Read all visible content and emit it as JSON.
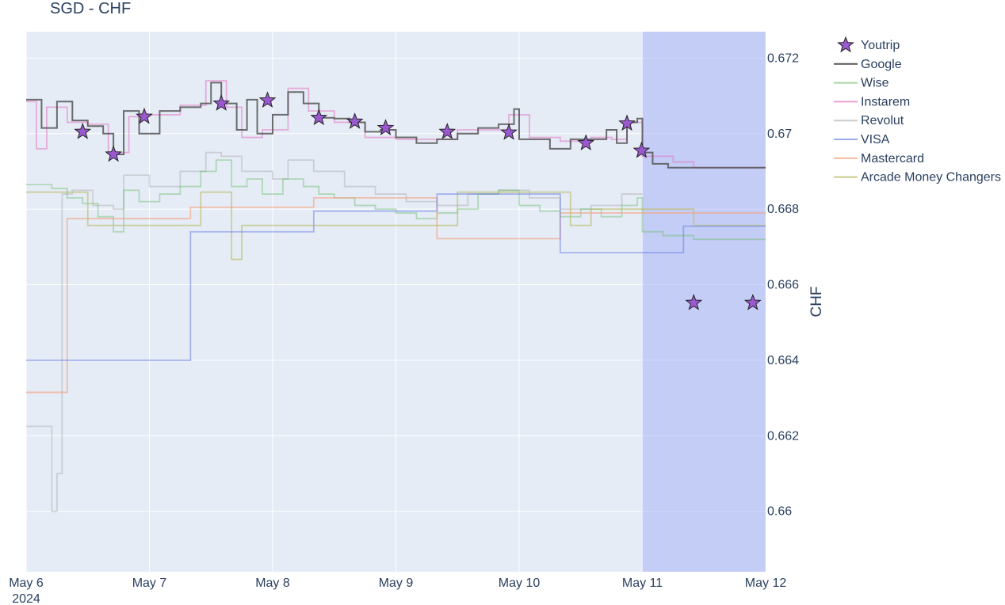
{
  "chart_data": {
    "type": "line",
    "title": "SGD - CHF",
    "ylabel": "CHF",
    "xlabel": "",
    "x_range": [
      "2024-05-06",
      "2024-05-12"
    ],
    "ylim": [
      0.6584,
      0.6727
    ],
    "x_ticks": [
      {
        "date": "2024-05-06",
        "label": "May 6",
        "sublabel": "2024"
      },
      {
        "date": "2024-05-07",
        "label": "May 7"
      },
      {
        "date": "2024-05-08",
        "label": "May 8"
      },
      {
        "date": "2024-05-09",
        "label": "May 9"
      },
      {
        "date": "2024-05-10",
        "label": "May 10"
      },
      {
        "date": "2024-05-11",
        "label": "May 11"
      },
      {
        "date": "2024-05-12",
        "label": "May 12"
      }
    ],
    "y_ticks": [
      0.66,
      0.662,
      0.664,
      0.666,
      0.668,
      0.67,
      0.672
    ],
    "y_tick_labels": [
      "0.66",
      "0.662",
      "0.664",
      "0.666",
      "0.668",
      "0.67",
      "0.672"
    ],
    "shaded_region": {
      "x0": "2024-05-11",
      "x1": "2024-05-12",
      "color": "#aab4f5"
    },
    "plot_bgcolor": "#e5ecf6",
    "grid": true,
    "legend_position": "right",
    "series": [
      {
        "name": "Youtrip",
        "mode": "markers",
        "marker": "star",
        "color": "#9b59d0",
        "points": [
          [
            "2024-05-06 11:00",
            0.67005
          ],
          [
            "2024-05-06 17:00",
            0.66945
          ],
          [
            "2024-05-06 23:00",
            0.67045
          ],
          [
            "2024-05-07 14:00",
            0.6708
          ],
          [
            "2024-05-07 23:00",
            0.67088
          ],
          [
            "2024-05-08 09:00",
            0.67042
          ],
          [
            "2024-05-08 16:00",
            0.67032
          ],
          [
            "2024-05-08 22:00",
            0.67015
          ],
          [
            "2024-05-09 10:00",
            0.67005
          ],
          [
            "2024-05-09 22:00",
            0.67003
          ],
          [
            "2024-05-10 13:00",
            0.66975
          ],
          [
            "2024-05-10 21:00",
            0.67027
          ],
          [
            "2024-05-10 23:50",
            0.66955
          ],
          [
            "2024-05-11 10:00",
            0.66552
          ],
          [
            "2024-05-11 21:30",
            0.66552
          ]
        ]
      },
      {
        "name": "Google",
        "mode": "line",
        "color": "#555555",
        "opacity": 0.85,
        "points": [
          [
            "2024-05-06 00:00",
            0.6709
          ],
          [
            "2024-05-06 03:00",
            0.67015
          ],
          [
            "2024-05-06 06:00",
            0.67085
          ],
          [
            "2024-05-06 09:00",
            0.67035
          ],
          [
            "2024-05-06 12:00",
            0.6702
          ],
          [
            "2024-05-06 15:00",
            0.67
          ],
          [
            "2024-05-06 17:00",
            0.66945
          ],
          [
            "2024-05-06 19:00",
            0.6706
          ],
          [
            "2024-05-06 22:00",
            0.67
          ],
          [
            "2024-05-07 02:00",
            0.6706
          ],
          [
            "2024-05-07 06:00",
            0.6707
          ],
          [
            "2024-05-07 10:00",
            0.6708
          ],
          [
            "2024-05-07 12:00",
            0.67135
          ],
          [
            "2024-05-07 14:00",
            0.6708
          ],
          [
            "2024-05-07 17:00",
            0.6701
          ],
          [
            "2024-05-07 19:00",
            0.6709
          ],
          [
            "2024-05-07 21:00",
            0.67
          ],
          [
            "2024-05-08 00:00",
            0.6705
          ],
          [
            "2024-05-08 03:00",
            0.6711
          ],
          [
            "2024-05-08 06:00",
            0.6708
          ],
          [
            "2024-05-08 09:00",
            0.67042
          ],
          [
            "2024-05-08 12:00",
            0.6704
          ],
          [
            "2024-05-08 15:00",
            0.6703
          ],
          [
            "2024-05-08 18:00",
            0.67005
          ],
          [
            "2024-05-08 21:00",
            0.6701
          ],
          [
            "2024-05-09 00:00",
            0.6699
          ],
          [
            "2024-05-09 04:00",
            0.66975
          ],
          [
            "2024-05-09 08:00",
            0.66985
          ],
          [
            "2024-05-09 12:00",
            0.67
          ],
          [
            "2024-05-09 16:00",
            0.67015
          ],
          [
            "2024-05-09 20:00",
            0.67025
          ],
          [
            "2024-05-09 23:00",
            0.67065
          ],
          [
            "2024-05-10 00:00",
            0.66985
          ],
          [
            "2024-05-10 04:00",
            0.66985
          ],
          [
            "2024-05-10 06:00",
            0.6696
          ],
          [
            "2024-05-10 10:00",
            0.66985
          ],
          [
            "2024-05-10 14:00",
            0.66985
          ],
          [
            "2024-05-10 17:00",
            0.6701
          ],
          [
            "2024-05-10 19:00",
            0.66975
          ],
          [
            "2024-05-10 21:00",
            0.6703
          ],
          [
            "2024-05-10 23:00",
            0.6704
          ],
          [
            "2024-05-11 00:00",
            0.6695
          ],
          [
            "2024-05-11 02:00",
            0.6692
          ],
          [
            "2024-05-11 05:00",
            0.6691
          ],
          [
            "2024-05-11 08:00",
            0.6691
          ],
          [
            "2024-05-12 00:00",
            0.6691
          ]
        ]
      },
      {
        "name": "Wise",
        "mode": "line",
        "color": "#5cb85c",
        "opacity": 0.4,
        "points": [
          [
            "2024-05-06 00:00",
            0.66865
          ],
          [
            "2024-05-06 05:00",
            0.66855
          ],
          [
            "2024-05-06 08:00",
            0.6683
          ],
          [
            "2024-05-06 11:00",
            0.66815
          ],
          [
            "2024-05-06 14:00",
            0.6678
          ],
          [
            "2024-05-06 17:00",
            0.6674
          ],
          [
            "2024-05-06 19:00",
            0.6685
          ],
          [
            "2024-05-06 22:00",
            0.6682
          ],
          [
            "2024-05-07 02:00",
            0.6684
          ],
          [
            "2024-05-07 06:00",
            0.6686
          ],
          [
            "2024-05-07 10:00",
            0.669
          ],
          [
            "2024-05-07 13:00",
            0.6693
          ],
          [
            "2024-05-07 16:00",
            0.6686
          ],
          [
            "2024-05-07 19:00",
            0.6688
          ],
          [
            "2024-05-07 22:00",
            0.6684
          ],
          [
            "2024-05-08 02:00",
            0.6688
          ],
          [
            "2024-05-08 06:00",
            0.6686
          ],
          [
            "2024-05-08 09:00",
            0.6684
          ],
          [
            "2024-05-08 12:00",
            0.6683
          ],
          [
            "2024-05-08 16:00",
            0.6681
          ],
          [
            "2024-05-08 20:00",
            0.668
          ],
          [
            "2024-05-09 00:00",
            0.6679
          ],
          [
            "2024-05-09 04:00",
            0.66775
          ],
          [
            "2024-05-09 08:00",
            0.6679
          ],
          [
            "2024-05-09 12:00",
            0.668
          ],
          [
            "2024-05-09 16:00",
            0.6684
          ],
          [
            "2024-05-09 20:00",
            0.6685
          ],
          [
            "2024-05-10 00:00",
            0.6681
          ],
          [
            "2024-05-10 04:00",
            0.66795
          ],
          [
            "2024-05-10 08:00",
            0.6678
          ],
          [
            "2024-05-10 12:00",
            0.668
          ],
          [
            "2024-05-10 16:00",
            0.6678
          ],
          [
            "2024-05-10 20:00",
            0.6681
          ],
          [
            "2024-05-10 23:00",
            0.6683
          ],
          [
            "2024-05-11 00:00",
            0.6674
          ],
          [
            "2024-05-11 04:00",
            0.6673
          ],
          [
            "2024-05-11 10:00",
            0.6672
          ],
          [
            "2024-05-12 00:00",
            0.6672
          ]
        ]
      },
      {
        "name": "Instarem",
        "mode": "line",
        "color": "#e377c2",
        "opacity": 0.55,
        "points": [
          [
            "2024-05-06 00:00",
            0.67085
          ],
          [
            "2024-05-06 02:00",
            0.6696
          ],
          [
            "2024-05-06 04:00",
            0.6707
          ],
          [
            "2024-05-06 08:00",
            0.6703
          ],
          [
            "2024-05-06 12:00",
            0.67025
          ],
          [
            "2024-05-06 16:00",
            0.6695
          ],
          [
            "2024-05-06 20:00",
            0.67045
          ],
          [
            "2024-05-07 00:00",
            0.6705
          ],
          [
            "2024-05-07 06:00",
            0.67075
          ],
          [
            "2024-05-07 11:00",
            0.6714
          ],
          [
            "2024-05-07 15:00",
            0.6707
          ],
          [
            "2024-05-07 18:00",
            0.6699
          ],
          [
            "2024-05-07 22:00",
            0.6701
          ],
          [
            "2024-05-08 03:00",
            0.6712
          ],
          [
            "2024-05-08 07:00",
            0.6706
          ],
          [
            "2024-05-08 12:00",
            0.6703
          ],
          [
            "2024-05-08 18:00",
            0.6699
          ],
          [
            "2024-05-09 00:00",
            0.66985
          ],
          [
            "2024-05-09 06:00",
            0.66985
          ],
          [
            "2024-05-09 12:00",
            0.6701
          ],
          [
            "2024-05-09 18:00",
            0.6701
          ],
          [
            "2024-05-09 22:00",
            0.6705
          ],
          [
            "2024-05-10 02:00",
            0.6699
          ],
          [
            "2024-05-10 08:00",
            0.6698
          ],
          [
            "2024-05-10 14:00",
            0.6699
          ],
          [
            "2024-05-10 18:00",
            0.66985
          ],
          [
            "2024-05-10 21:00",
            0.6703
          ],
          [
            "2024-05-11 00:00",
            0.6694
          ],
          [
            "2024-05-11 06:00",
            0.66925
          ],
          [
            "2024-05-11 10:00",
            0.6691
          ],
          [
            "2024-05-12 00:00",
            0.6691
          ]
        ]
      },
      {
        "name": "Revolut",
        "mode": "line",
        "color": "#aaaaaa",
        "opacity": 0.45,
        "points": [
          [
            "2024-05-06 00:00",
            0.66225
          ],
          [
            "2024-05-06 04:00",
            0.66225
          ],
          [
            "2024-05-06 05:00",
            0.66
          ],
          [
            "2024-05-06 06:00",
            0.661
          ],
          [
            "2024-05-06 07:00",
            0.6684
          ],
          [
            "2024-05-06 09:00",
            0.6685
          ],
          [
            "2024-05-06 13:00",
            0.6681
          ],
          [
            "2024-05-06 17:00",
            0.668
          ],
          [
            "2024-05-06 19:00",
            0.6689
          ],
          [
            "2024-05-07 00:00",
            0.6686
          ],
          [
            "2024-05-07 06:00",
            0.669
          ],
          [
            "2024-05-07 11:00",
            0.6695
          ],
          [
            "2024-05-07 14:00",
            0.6694
          ],
          [
            "2024-05-07 18:00",
            0.669
          ],
          [
            "2024-05-08 00:00",
            0.6688
          ],
          [
            "2024-05-08 03:00",
            0.6693
          ],
          [
            "2024-05-08 08:00",
            0.669
          ],
          [
            "2024-05-08 14:00",
            0.6686
          ],
          [
            "2024-05-08 20:00",
            0.6684
          ],
          [
            "2024-05-09 02:00",
            0.6682
          ],
          [
            "2024-05-09 08:00",
            0.6681
          ],
          [
            "2024-05-09 14:00",
            0.6684
          ],
          [
            "2024-05-09 20:00",
            0.6685
          ],
          [
            "2024-05-10 02:00",
            0.6683
          ],
          [
            "2024-05-10 08:00",
            0.668
          ],
          [
            "2024-05-10 14:00",
            0.6681
          ],
          [
            "2024-05-10 20:00",
            0.6684
          ],
          [
            "2024-05-11 00:00",
            0.6684
          ]
        ]
      },
      {
        "name": "VISA",
        "mode": "line",
        "color": "#6d83e8",
        "opacity": 0.55,
        "points": [
          [
            "2024-05-06 00:00",
            0.664
          ],
          [
            "2024-05-07 08:00",
            0.664
          ],
          [
            "2024-05-07 08:00",
            0.6674
          ],
          [
            "2024-05-08 08:00",
            0.6674
          ],
          [
            "2024-05-08 08:00",
            0.66795
          ],
          [
            "2024-05-09 08:00",
            0.66795
          ],
          [
            "2024-05-09 08:00",
            0.6684
          ],
          [
            "2024-05-10 08:00",
            0.6684
          ],
          [
            "2024-05-10 08:00",
            0.66685
          ],
          [
            "2024-05-11 08:00",
            0.66685
          ],
          [
            "2024-05-11 08:00",
            0.66755
          ],
          [
            "2024-05-12 00:00",
            0.66755
          ]
        ]
      },
      {
        "name": "Mastercard",
        "mode": "line",
        "color": "#f4a582",
        "opacity": 0.65,
        "points": [
          [
            "2024-05-06 00:00",
            0.66315
          ],
          [
            "2024-05-06 08:00",
            0.66315
          ],
          [
            "2024-05-06 08:00",
            0.66775
          ],
          [
            "2024-05-07 08:00",
            0.66775
          ],
          [
            "2024-05-07 08:00",
            0.66805
          ],
          [
            "2024-05-08 08:00",
            0.66805
          ],
          [
            "2024-05-08 08:00",
            0.6683
          ],
          [
            "2024-05-09 08:00",
            0.6683
          ],
          [
            "2024-05-09 08:00",
            0.66722
          ],
          [
            "2024-05-10 08:00",
            0.66722
          ],
          [
            "2024-05-10 08:00",
            0.6679
          ],
          [
            "2024-05-12 00:00",
            0.6679
          ]
        ]
      },
      {
        "name": "Arcade Money Changers",
        "mode": "line",
        "color": "#bcbd6a",
        "opacity": 0.65,
        "points": [
          [
            "2024-05-06 00:00",
            0.66845
          ],
          [
            "2024-05-06 12:00",
            0.66845
          ],
          [
            "2024-05-06 12:00",
            0.66757
          ],
          [
            "2024-05-07 10:00",
            0.66757
          ],
          [
            "2024-05-07 10:00",
            0.66845
          ],
          [
            "2024-05-07 16:00",
            0.66845
          ],
          [
            "2024-05-07 16:00",
            0.66667
          ],
          [
            "2024-05-07 18:00",
            0.66667
          ],
          [
            "2024-05-07 18:00",
            0.66757
          ],
          [
            "2024-05-09 12:00",
            0.66757
          ],
          [
            "2024-05-09 12:00",
            0.66845
          ],
          [
            "2024-05-10 10:00",
            0.66845
          ],
          [
            "2024-05-10 10:00",
            0.66757
          ],
          [
            "2024-05-10 14:00",
            0.66757
          ],
          [
            "2024-05-10 14:00",
            0.668
          ],
          [
            "2024-05-11 10:00",
            0.668
          ],
          [
            "2024-05-11 10:00",
            0.66757
          ],
          [
            "2024-05-12 00:00",
            0.66757
          ]
        ]
      }
    ]
  }
}
